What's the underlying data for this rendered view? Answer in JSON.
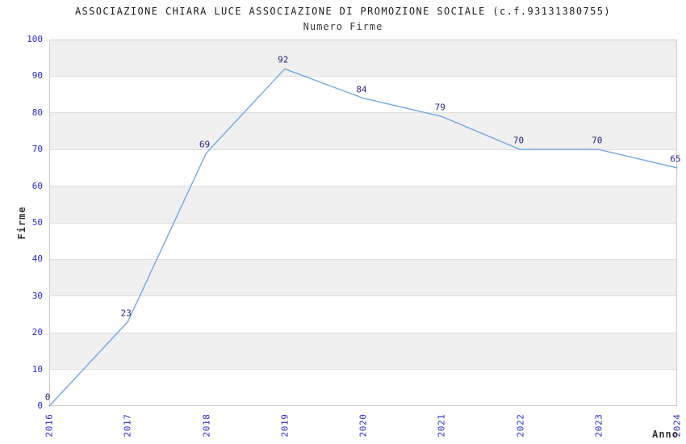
{
  "chart_data": {
    "type": "line",
    "title": "ASSOCIAZIONE CHIARA LUCE ASSOCIAZIONE DI PROMOZIONE SOCIALE (c.f.93131380755)",
    "subtitle": "Numero Firme",
    "xlabel": "Anno",
    "ylabel": "Firme",
    "categories": [
      "2016",
      "2017",
      "2018",
      "2019",
      "2020",
      "2021",
      "2022",
      "2023",
      "2024"
    ],
    "values": [
      0,
      23,
      69,
      92,
      84,
      79,
      70,
      70,
      65
    ],
    "ylim": [
      0,
      100
    ],
    "ytick_step": 10,
    "grid": "horizontal-stripes",
    "legend": "none",
    "point_labels_shown": true,
    "colors": {
      "line": "#74a7dc",
      "point_label": "#26267d",
      "tick_label": "#2a2ad0",
      "title": "#1a1a1a",
      "subtitle": "#3a3a3a",
      "axis_label": "#333333",
      "stripe": "#f0f0f0",
      "gridline": "#dedede",
      "border": "#cccccc",
      "background": "#ffffff"
    }
  }
}
